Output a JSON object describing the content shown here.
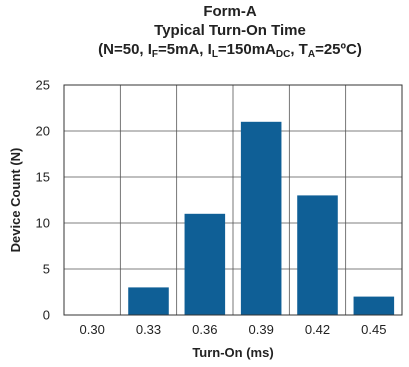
{
  "chart_data": {
    "type": "bar",
    "title": "Form-A",
    "subtitle_line1": "Typical Turn-On Time",
    "subtitle_line2": {
      "prefix": "(N=50, I",
      "sub1": "F",
      "mid1": "=5mA, I",
      "sub2": "L",
      "mid2": "=150mA",
      "sub3": "DC",
      "mid3": ", T",
      "sub4": "A",
      "suffix": "=25ºC)"
    },
    "xlabel": "Turn-On (ms)",
    "ylabel": "Device Count (N)",
    "categories": [
      "0.30",
      "0.33",
      "0.36",
      "0.39",
      "0.42",
      "0.45"
    ],
    "values": [
      0,
      3,
      11,
      21,
      13,
      2
    ],
    "ylim": [
      0,
      25
    ],
    "yticks": [
      0,
      5,
      10,
      15,
      20,
      25
    ],
    "grid": true,
    "bar_color": "#0f5f96"
  }
}
